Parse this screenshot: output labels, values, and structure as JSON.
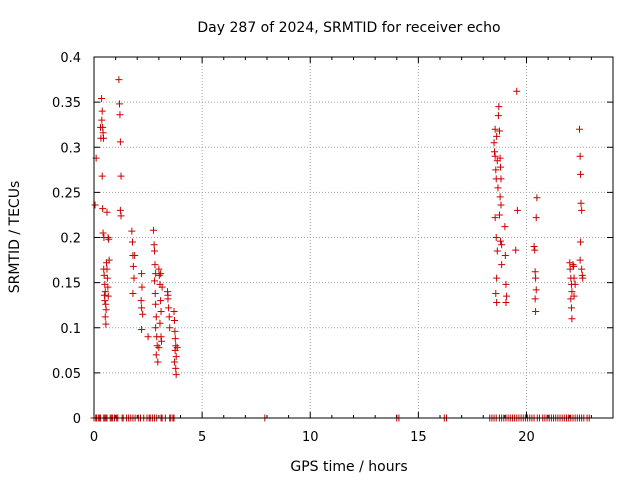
{
  "chart_data": {
    "type": "scatter",
    "title": "Day 287 of 2024, SRMTID for receiver echo",
    "xlabel": "GPS time / hours",
    "ylabel": "SRMTID / TECUs",
    "xlim": [
      0,
      24
    ],
    "ylim": [
      0,
      0.4
    ],
    "xticks": [
      0,
      5,
      10,
      15,
      20
    ],
    "xtick_labels": [
      "0",
      "5",
      "10",
      "15",
      "20"
    ],
    "yticks": [
      0,
      0.05,
      0.1,
      0.15,
      0.2,
      0.25,
      0.3,
      0.35,
      0.4
    ],
    "ytick_labels": [
      "0",
      "0.05",
      "0.1",
      "0.15",
      "0.2",
      "0.25",
      "0.3",
      "0.35",
      "0.4"
    ],
    "grid": true,
    "marker": "+",
    "color": "#cc0000",
    "series": [
      {
        "name": "SRMTID",
        "points": [
          [
            0.05,
            0.236
          ],
          [
            0.1,
            0.288
          ],
          [
            0.3,
            0.322
          ],
          [
            0.32,
            0.31
          ],
          [
            0.35,
            0.354
          ],
          [
            0.36,
            0.33
          ],
          [
            0.38,
            0.34
          ],
          [
            0.4,
            0.322
          ],
          [
            0.42,
            0.316
          ],
          [
            0.44,
            0.31
          ],
          [
            0.38,
            0.268
          ],
          [
            0.4,
            0.232
          ],
          [
            0.42,
            0.205
          ],
          [
            0.46,
            0.2
          ],
          [
            0.45,
            0.165
          ],
          [
            0.47,
            0.158
          ],
          [
            0.5,
            0.148
          ],
          [
            0.52,
            0.14
          ],
          [
            0.48,
            0.136
          ],
          [
            0.5,
            0.13
          ],
          [
            0.54,
            0.126
          ],
          [
            0.56,
            0.12
          ],
          [
            0.52,
            0.112
          ],
          [
            0.55,
            0.104
          ],
          [
            0.58,
            0.172
          ],
          [
            0.6,
            0.165
          ],
          [
            0.62,
            0.155
          ],
          [
            0.64,
            0.145
          ],
          [
            0.66,
            0.135
          ],
          [
            0.6,
            0.228
          ],
          [
            0.65,
            0.2
          ],
          [
            0.68,
            0.198
          ],
          [
            0.7,
            0.175
          ],
          [
            1.15,
            0.375
          ],
          [
            1.18,
            0.348
          ],
          [
            1.2,
            0.336
          ],
          [
            1.22,
            0.306
          ],
          [
            1.25,
            0.268
          ],
          [
            1.22,
            0.23
          ],
          [
            1.25,
            0.224
          ],
          [
            1.75,
            0.207
          ],
          [
            1.78,
            0.195
          ],
          [
            1.8,
            0.18
          ],
          [
            1.82,
            0.168
          ],
          [
            1.85,
            0.155
          ],
          [
            1.8,
            0.138
          ],
          [
            1.88,
            0.18
          ],
          [
            2.2,
            0.16
          ],
          [
            2.22,
            0.145
          ],
          [
            2.18,
            0.13
          ],
          [
            2.2,
            0.122
          ],
          [
            2.25,
            0.115
          ],
          [
            2.2,
            0.098
          ],
          [
            2.5,
            0.09
          ],
          [
            2.75,
            0.208
          ],
          [
            2.78,
            0.192
          ],
          [
            2.8,
            0.185
          ],
          [
            2.82,
            0.17
          ],
          [
            2.85,
            0.16
          ],
          [
            2.8,
            0.152
          ],
          [
            2.83,
            0.138
          ],
          [
            2.85,
            0.126
          ],
          [
            2.88,
            0.112
          ],
          [
            2.85,
            0.1
          ],
          [
            2.9,
            0.09
          ],
          [
            2.92,
            0.08
          ],
          [
            2.88,
            0.07
          ],
          [
            2.95,
            0.062
          ],
          [
            3.0,
            0.165
          ],
          [
            3.02,
            0.158
          ],
          [
            3.05,
            0.148
          ],
          [
            3.08,
            0.13
          ],
          [
            3.1,
            0.118
          ],
          [
            3.05,
            0.105
          ],
          [
            3.1,
            0.09
          ],
          [
            3.12,
            0.085
          ],
          [
            3.0,
            0.078
          ],
          [
            3.15,
            0.145
          ],
          [
            3.08,
            0.16
          ],
          [
            3.4,
            0.14
          ],
          [
            3.42,
            0.132
          ],
          [
            3.45,
            0.122
          ],
          [
            3.48,
            0.112
          ],
          [
            3.5,
            0.1
          ],
          [
            3.42,
            0.136
          ],
          [
            3.7,
            0.118
          ],
          [
            3.72,
            0.108
          ],
          [
            3.74,
            0.096
          ],
          [
            3.76,
            0.088
          ],
          [
            3.78,
            0.08
          ],
          [
            3.75,
            0.075
          ],
          [
            3.8,
            0.068
          ],
          [
            3.72,
            0.062
          ],
          [
            3.78,
            0.055
          ],
          [
            3.8,
            0.048
          ],
          [
            3.85,
            0.078
          ],
          [
            18.5,
            0.305
          ],
          [
            18.52,
            0.295
          ],
          [
            18.55,
            0.29
          ],
          [
            18.58,
            0.275
          ],
          [
            18.6,
            0.265
          ],
          [
            18.55,
            0.32
          ],
          [
            18.62,
            0.312
          ],
          [
            18.65,
            0.285
          ],
          [
            18.68,
            0.255
          ],
          [
            18.55,
            0.222
          ],
          [
            18.6,
            0.2
          ],
          [
            18.65,
            0.185
          ],
          [
            18.62,
            0.155
          ],
          [
            18.58,
            0.138
          ],
          [
            18.62,
            0.128
          ],
          [
            18.7,
            0.335
          ],
          [
            18.72,
            0.345
          ],
          [
            18.75,
            0.318
          ],
          [
            18.78,
            0.288
          ],
          [
            18.8,
            0.278
          ],
          [
            18.82,
            0.265
          ],
          [
            18.78,
            0.245
          ],
          [
            18.82,
            0.236
          ],
          [
            18.75,
            0.225
          ],
          [
            18.8,
            0.196
          ],
          [
            18.85,
            0.192
          ],
          [
            18.85,
            0.17
          ],
          [
            19.0,
            0.212
          ],
          [
            19.02,
            0.18
          ],
          [
            19.05,
            0.148
          ],
          [
            19.08,
            0.135
          ],
          [
            19.05,
            0.128
          ],
          [
            19.55,
            0.362
          ],
          [
            19.58,
            0.23
          ],
          [
            19.5,
            0.186
          ],
          [
            20.35,
            0.19
          ],
          [
            20.38,
            0.186
          ],
          [
            20.4,
            0.162
          ],
          [
            20.42,
            0.155
          ],
          [
            20.45,
            0.142
          ],
          [
            20.4,
            0.132
          ],
          [
            20.42,
            0.118
          ],
          [
            20.48,
            0.244
          ],
          [
            20.45,
            0.222
          ],
          [
            22.0,
            0.172
          ],
          [
            22.02,
            0.165
          ],
          [
            22.05,
            0.155
          ],
          [
            22.08,
            0.148
          ],
          [
            22.1,
            0.14
          ],
          [
            22.05,
            0.132
          ],
          [
            22.08,
            0.122
          ],
          [
            22.1,
            0.11
          ],
          [
            22.15,
            0.17
          ],
          [
            22.18,
            0.168
          ],
          [
            22.2,
            0.155
          ],
          [
            22.25,
            0.148
          ],
          [
            22.2,
            0.135
          ],
          [
            22.45,
            0.32
          ],
          [
            22.48,
            0.29
          ],
          [
            22.5,
            0.27
          ],
          [
            22.52,
            0.238
          ],
          [
            22.55,
            0.23
          ],
          [
            22.5,
            0.195
          ],
          [
            22.48,
            0.175
          ],
          [
            22.55,
            0.165
          ],
          [
            22.58,
            0.158
          ],
          [
            22.6,
            0.155
          ],
          [
            0.0,
            0
          ],
          [
            0.08,
            0
          ],
          [
            0.12,
            0
          ],
          [
            0.2,
            0
          ],
          [
            0.26,
            0
          ],
          [
            0.3,
            0
          ],
          [
            0.45,
            0
          ],
          [
            0.5,
            0
          ],
          [
            0.55,
            0
          ],
          [
            0.6,
            0
          ],
          [
            0.75,
            0
          ],
          [
            0.8,
            0
          ],
          [
            0.85,
            0
          ],
          [
            0.95,
            0
          ],
          [
            1.05,
            0
          ],
          [
            1.1,
            0
          ],
          [
            1.3,
            0
          ],
          [
            1.35,
            0
          ],
          [
            1.5,
            0
          ],
          [
            1.6,
            0
          ],
          [
            1.7,
            0
          ],
          [
            1.8,
            0
          ],
          [
            1.9,
            0
          ],
          [
            2.05,
            0
          ],
          [
            2.15,
            0
          ],
          [
            2.3,
            0
          ],
          [
            2.45,
            0
          ],
          [
            2.55,
            0
          ],
          [
            2.6,
            0
          ],
          [
            2.7,
            0
          ],
          [
            2.8,
            0
          ],
          [
            2.9,
            0
          ],
          [
            3.1,
            0
          ],
          [
            3.15,
            0
          ],
          [
            3.3,
            0
          ],
          [
            3.5,
            0
          ],
          [
            3.55,
            0
          ],
          [
            3.65,
            0
          ],
          [
            3.7,
            0
          ],
          [
            7.9,
            0
          ],
          [
            14.0,
            0
          ],
          [
            14.1,
            0
          ],
          [
            16.2,
            0
          ],
          [
            16.3,
            0
          ],
          [
            18.3,
            0
          ],
          [
            18.4,
            0
          ],
          [
            18.5,
            0
          ],
          [
            18.6,
            0
          ],
          [
            18.75,
            0
          ],
          [
            18.85,
            0
          ],
          [
            18.95,
            0
          ],
          [
            19.05,
            0
          ],
          [
            19.15,
            0
          ],
          [
            19.25,
            0
          ],
          [
            19.35,
            0
          ],
          [
            19.45,
            0
          ],
          [
            19.55,
            0
          ],
          [
            19.65,
            0
          ],
          [
            19.75,
            0
          ],
          [
            19.85,
            0
          ],
          [
            19.95,
            0
          ],
          [
            20.05,
            0
          ],
          [
            20.15,
            0
          ],
          [
            20.25,
            0
          ],
          [
            20.35,
            0
          ],
          [
            20.5,
            0
          ],
          [
            20.6,
            0
          ],
          [
            20.75,
            0
          ],
          [
            20.85,
            0
          ],
          [
            20.95,
            0
          ],
          [
            21.05,
            0
          ],
          [
            21.15,
            0
          ],
          [
            21.25,
            0
          ],
          [
            21.35,
            0
          ],
          [
            21.45,
            0
          ],
          [
            21.55,
            0
          ],
          [
            21.65,
            0
          ],
          [
            21.75,
            0
          ],
          [
            21.85,
            0
          ],
          [
            21.95,
            0
          ],
          [
            22.05,
            0
          ],
          [
            22.15,
            0
          ],
          [
            22.25,
            0
          ],
          [
            22.35,
            0
          ],
          [
            22.45,
            0
          ],
          [
            22.55,
            0
          ],
          [
            22.65,
            0
          ],
          [
            22.8,
            0
          ],
          [
            22.9,
            0
          ]
        ]
      }
    ]
  }
}
